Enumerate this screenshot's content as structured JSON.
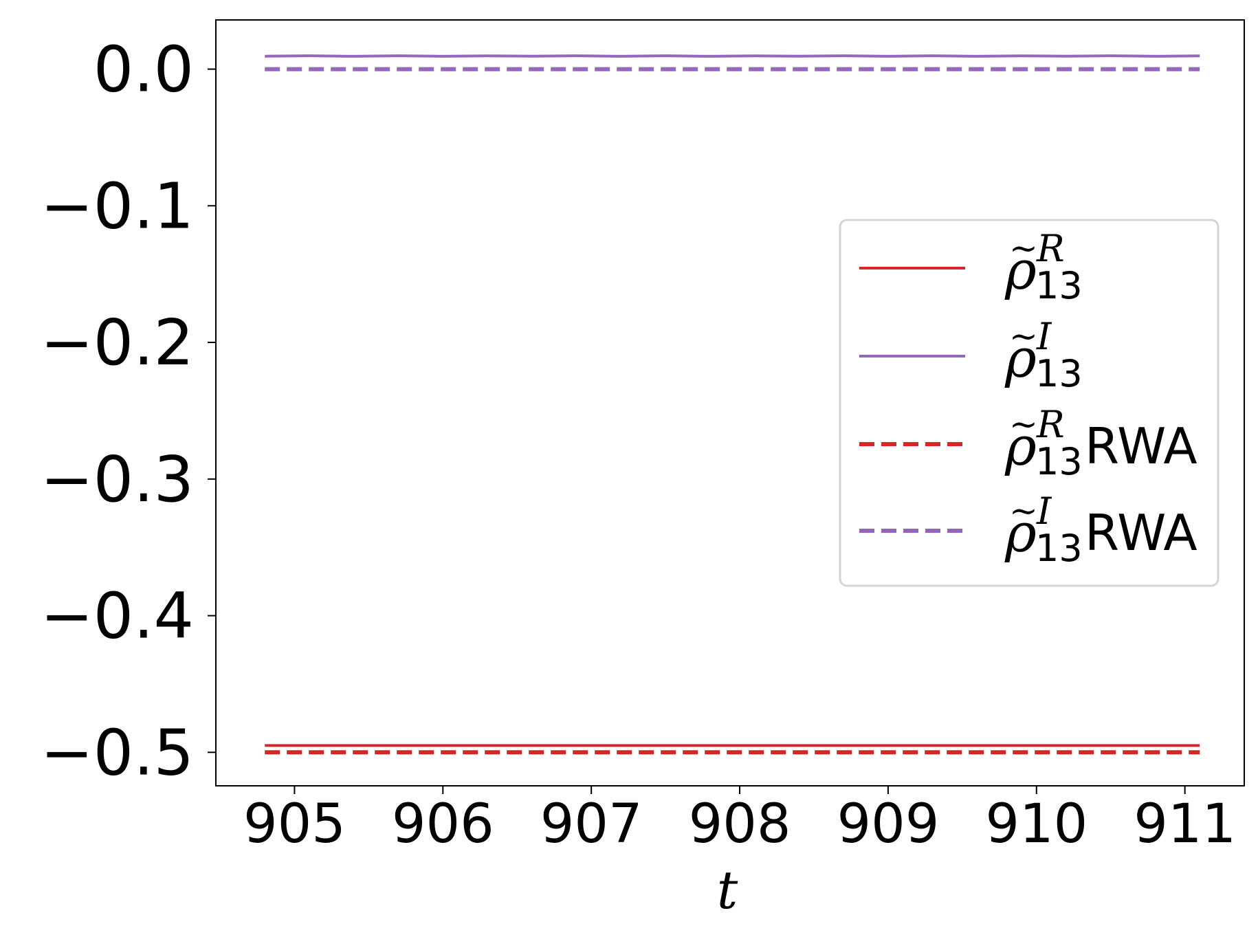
{
  "chart_data": {
    "type": "line",
    "title": "",
    "xlabel": "t",
    "ylabel": "",
    "xlim": [
      904.47,
      911.4
    ],
    "ylim": [
      -0.5245,
      0.036
    ],
    "xticks": [
      905,
      906,
      907,
      908,
      909,
      910,
      911
    ],
    "xtick_labels": [
      "905",
      "906",
      "907",
      "908",
      "909",
      "910",
      "911"
    ],
    "yticks": [
      0.0,
      -0.1,
      -0.2,
      -0.3,
      -0.4,
      -0.5
    ],
    "ytick_labels": [
      "0.0",
      "−0.1",
      "−0.2",
      "−0.3",
      "−0.4",
      "−0.5"
    ],
    "grid": false,
    "legend_position": "center-right",
    "series": [
      {
        "name": "ρ̃₁₃ᴿ",
        "legend_sub": "13",
        "legend_sup": "R",
        "legend_suffix": "",
        "color": "#d62728",
        "dash": "solid",
        "x": [
          904.8,
          905.5,
          906.2,
          906.9,
          907.6,
          908.3,
          909.0,
          909.7,
          910.4,
          911.1
        ],
        "y": [
          -0.495,
          -0.495,
          -0.495,
          -0.495,
          -0.495,
          -0.495,
          -0.495,
          -0.495,
          -0.495,
          -0.495
        ]
      },
      {
        "name": "ρ̃₁₃ᴵ",
        "legend_sub": "13",
        "legend_sup": "I",
        "legend_suffix": "",
        "color": "#9467bd",
        "dash": "solid",
        "x": [
          904.8,
          905.1,
          905.4,
          905.7,
          906.0,
          906.3,
          906.6,
          906.9,
          907.2,
          907.5,
          907.8,
          908.1,
          908.4,
          908.7,
          909.0,
          909.3,
          909.6,
          909.9,
          910.2,
          910.5,
          910.8,
          911.1
        ],
        "y": [
          0.0095,
          0.0098,
          0.0094,
          0.0098,
          0.0094,
          0.0097,
          0.0095,
          0.0098,
          0.0094,
          0.0098,
          0.0094,
          0.0097,
          0.0095,
          0.0098,
          0.0094,
          0.0098,
          0.0094,
          0.0097,
          0.0095,
          0.0098,
          0.0094,
          0.0097
        ]
      },
      {
        "name": "ρ̃₁₃ᴿ RWA",
        "legend_sub": "13",
        "legend_sup": "R",
        "legend_suffix": "RWA",
        "color": "#d62728",
        "dash": "dashed",
        "x": [
          904.8,
          911.1
        ],
        "y": [
          -0.5,
          -0.5
        ]
      },
      {
        "name": "ρ̃₁₃ᴵ RWA",
        "legend_sub": "13",
        "legend_sup": "I",
        "legend_suffix": "RWA",
        "color": "#9467bd",
        "dash": "dashed",
        "x": [
          904.8,
          911.1
        ],
        "y": [
          0.0,
          0.0
        ]
      }
    ]
  }
}
